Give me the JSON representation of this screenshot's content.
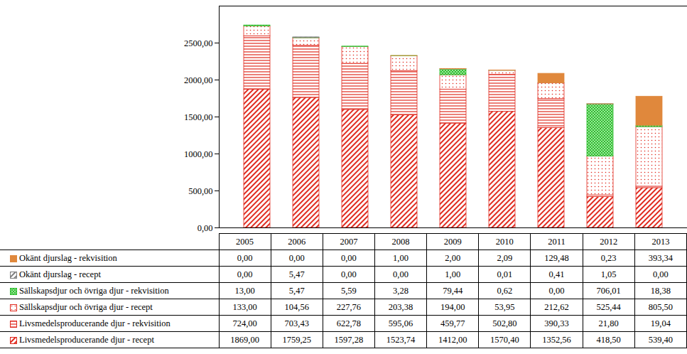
{
  "chart_data": {
    "type": "bar",
    "stacked": true,
    "grid": false,
    "categories": [
      "2005",
      "2006",
      "2007",
      "2008",
      "2009",
      "2010",
      "2011",
      "2012",
      "2013"
    ],
    "ylim": [
      0,
      3000
    ],
    "yticks": [
      {
        "value": 0,
        "label": "0,00"
      },
      {
        "value": 500,
        "label": "500,00"
      },
      {
        "value": 1000,
        "label": "1000,00"
      },
      {
        "value": 1500,
        "label": "1500,00"
      },
      {
        "value": 2000,
        "label": "2000,00"
      },
      {
        "value": 2500,
        "label": "2500,00"
      }
    ],
    "series": [
      {
        "name": "Livsmedelsproducerande djur - recept",
        "color": "#e02b20",
        "values": [
          1869.0,
          1759.25,
          1597.28,
          1523.74,
          1412.0,
          1570.4,
          1352.56,
          418.5,
          539.4
        ],
        "value_labels": [
          "1869,00",
          "1759,25",
          "1597,28",
          "1523,74",
          "1412,00",
          "1570,40",
          "1352,56",
          "418,50",
          "539,40"
        ]
      },
      {
        "name": "Livsmedelsproducerande djur - rekvisition",
        "color": "#e02b20",
        "values": [
          724.0,
          703.43,
          622.78,
          595.06,
          459.77,
          502.8,
          390.33,
          21.8,
          19.04
        ],
        "value_labels": [
          "724,00",
          "703,43",
          "622,78",
          "595,06",
          "459,77",
          "502,80",
          "390,33",
          "21,80",
          "19,04"
        ]
      },
      {
        "name": "Sällskapsdjur och övriga djur - recept",
        "color": "#e02b20",
        "values": [
          133.0,
          104.56,
          227.76,
          203.38,
          194.0,
          53.95,
          212.62,
          525.44,
          805.5
        ],
        "value_labels": [
          "133,00",
          "104,56",
          "227,76",
          "203,38",
          "194,00",
          "53,95",
          "212,62",
          "525,44",
          "805,50"
        ]
      },
      {
        "name": "Sällskapsdjur och övriga djur - rekvisition",
        "color": "#2fbf2f",
        "values": [
          13.0,
          5.47,
          5.59,
          3.28,
          79.44,
          0.62,
          0.0,
          706.01,
          18.38
        ],
        "value_labels": [
          "13,00",
          "5,47",
          "5,59",
          "3,28",
          "79,44",
          "0,62",
          "0,00",
          "706,01",
          "18,38"
        ]
      },
      {
        "name": "Okänt djurslag - recept",
        "color": "#7f7f7f",
        "values": [
          0.0,
          5.47,
          0.0,
          0.0,
          1.0,
          0.01,
          0.41,
          1.05,
          0.0
        ],
        "value_labels": [
          "0,00",
          "5,47",
          "0,00",
          "0,00",
          "1,00",
          "0,01",
          "0,41",
          "1,05",
          "0,00"
        ]
      },
      {
        "name": "Okänt djurslag - rekvisition",
        "color": "#e0883c",
        "values": [
          0.0,
          0.0,
          0.0,
          1.0,
          2.0,
          2.09,
          129.48,
          0.23,
          393.34
        ],
        "value_labels": [
          "0,00",
          "0,00",
          "0,00",
          "1,00",
          "2,00",
          "2,09",
          "129,48",
          "0,23",
          "393,34"
        ]
      }
    ]
  }
}
